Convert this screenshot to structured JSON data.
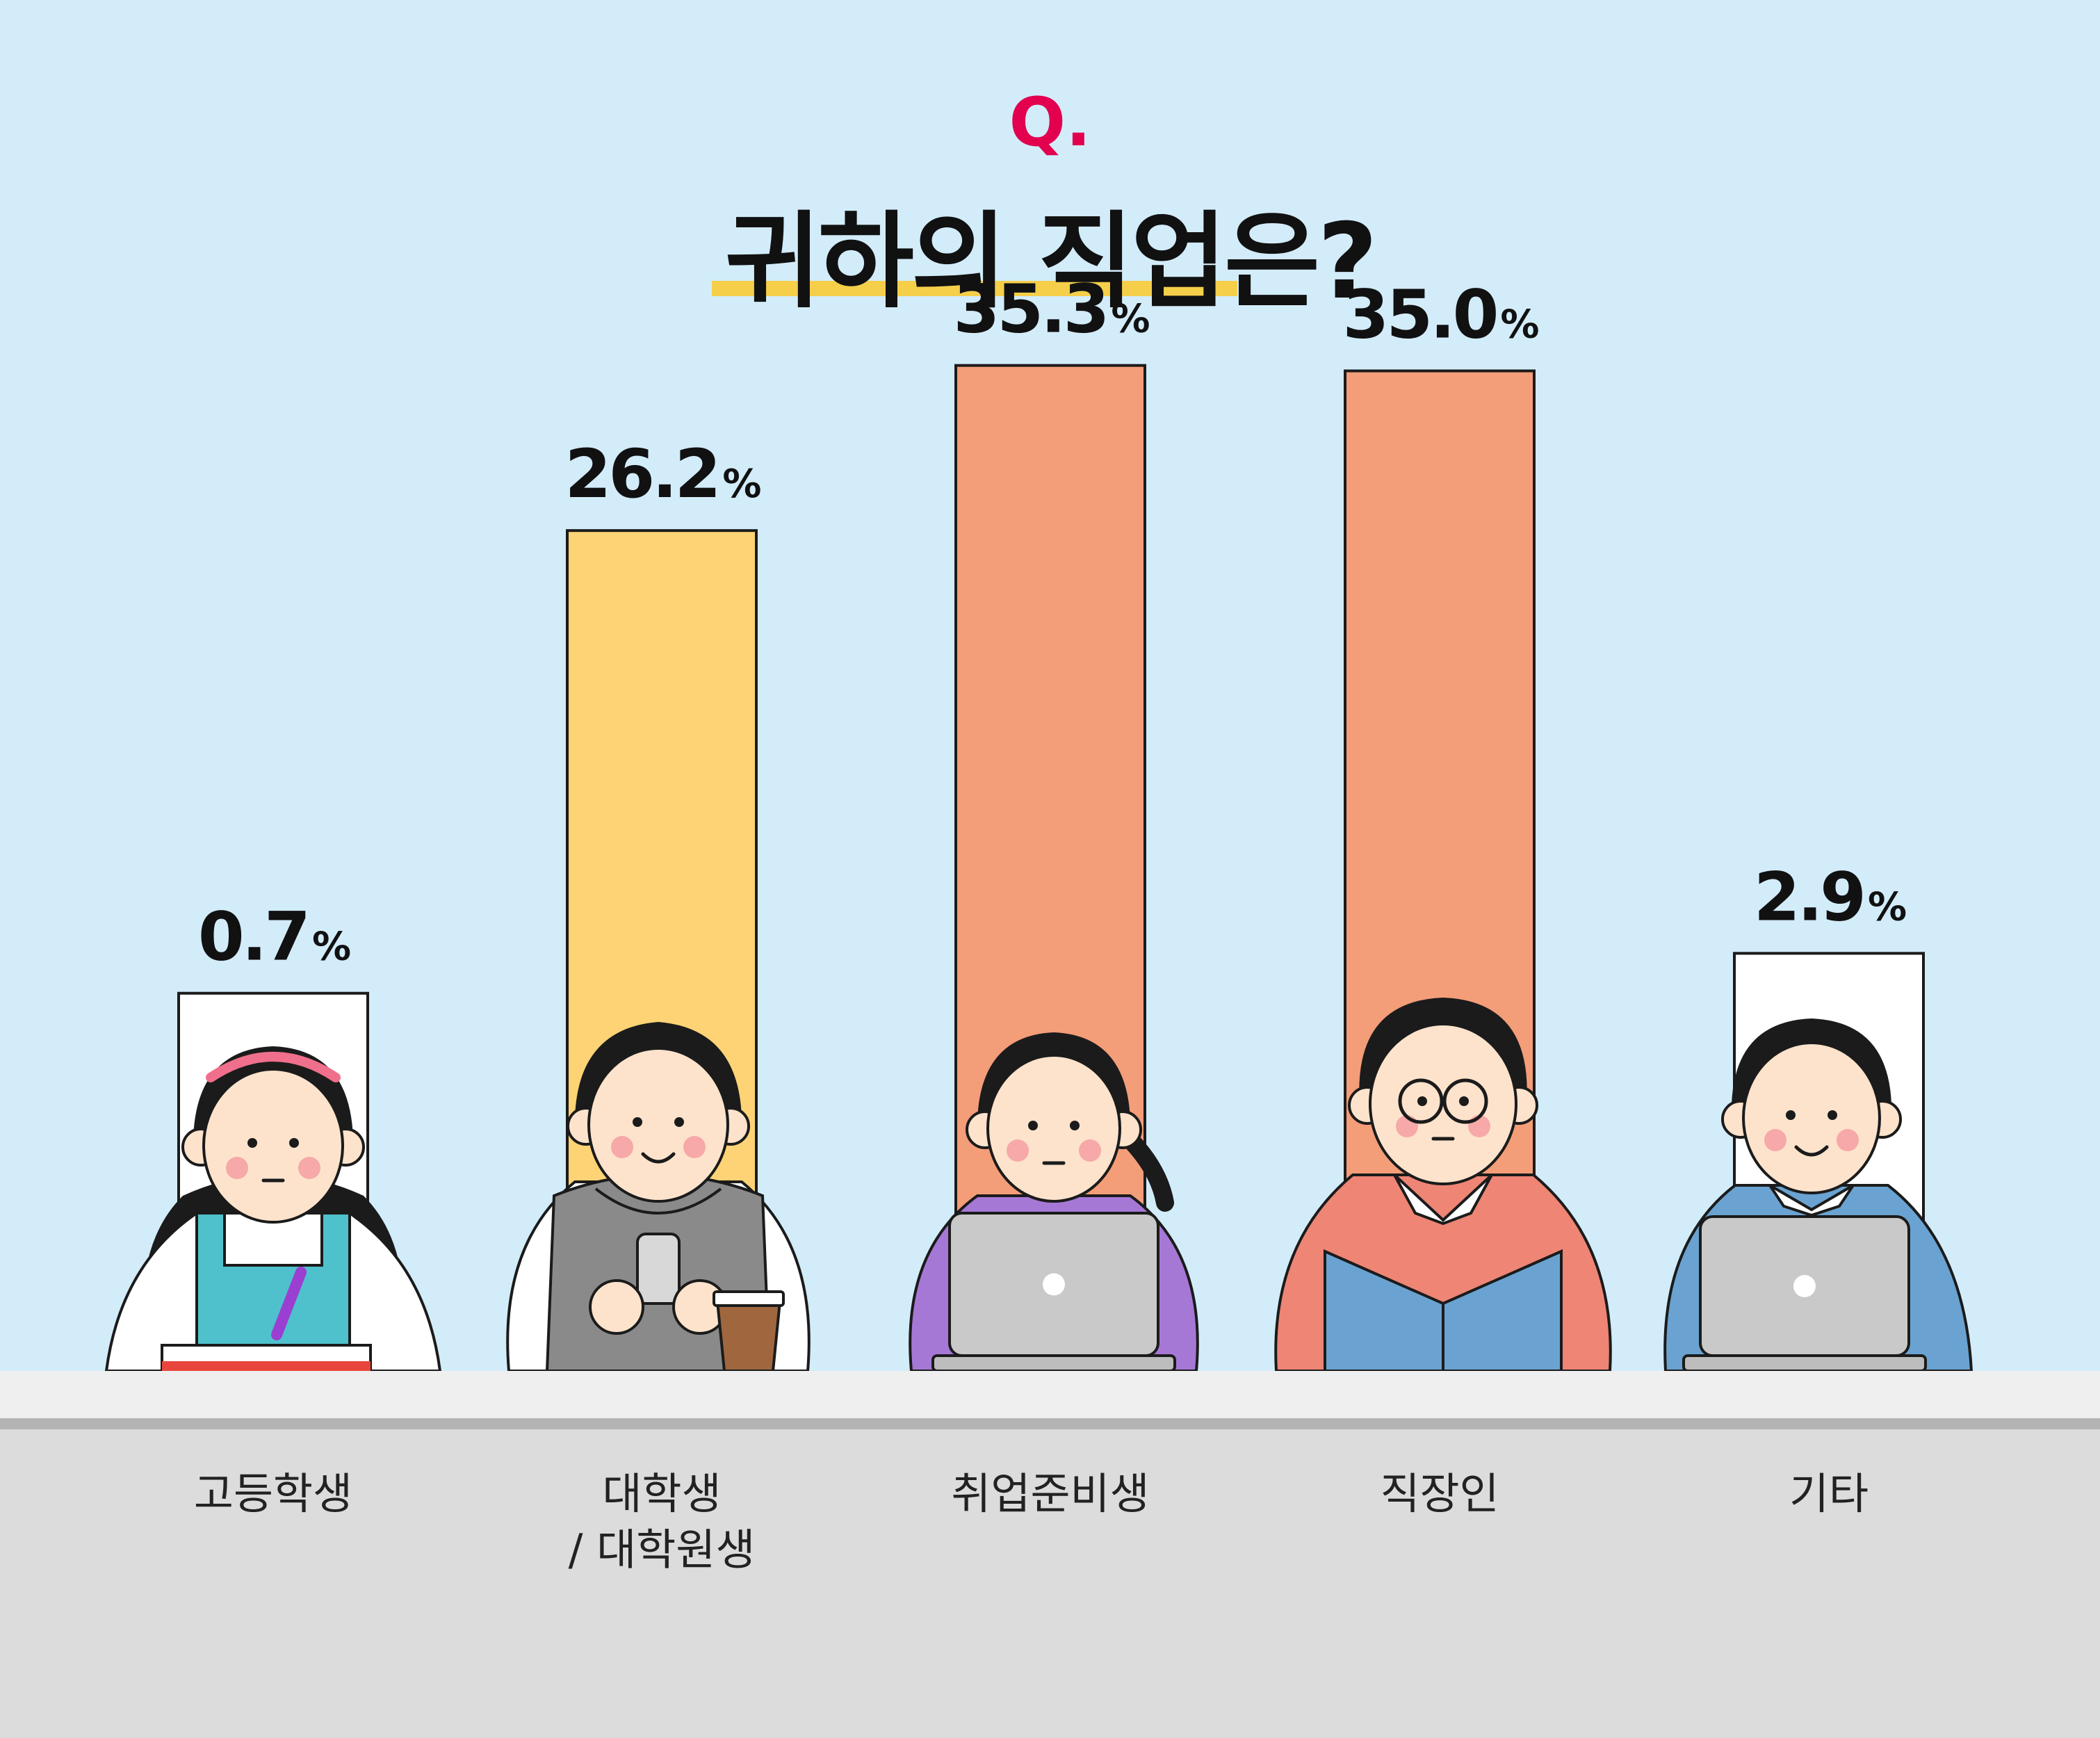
{
  "question_prefix": "Q.",
  "title": "귀하의 직업은?",
  "colors": {
    "background": "#d3ecfa",
    "accent": "#e2004f",
    "underline": "#f5cf4a",
    "desk_top": "#efefef",
    "desk_edge": "#b4b4b4",
    "desk_front": "#dcdcdc"
  },
  "chart_data": {
    "type": "bar",
    "categories": [
      "고등학생",
      "대학생\n/ 대학원생",
      "취업준비생",
      "직장인",
      "기타"
    ],
    "values": [
      0.7,
      26.2,
      35.3,
      35.0,
      2.9
    ],
    "value_labels": [
      "0.7",
      "26.2",
      "35.3",
      "35.0",
      "2.9"
    ],
    "unit": "%",
    "bar_colors": [
      "#ffffff",
      "#fdd375",
      "#f39d79",
      "#f39d79",
      "#ffffff"
    ],
    "illustrations": [
      "student-writing-icon",
      "student-phone-coffee-icon",
      "job-seeker-laptop-icon",
      "office-worker-reading-icon",
      "person-laptop-icon"
    ]
  }
}
